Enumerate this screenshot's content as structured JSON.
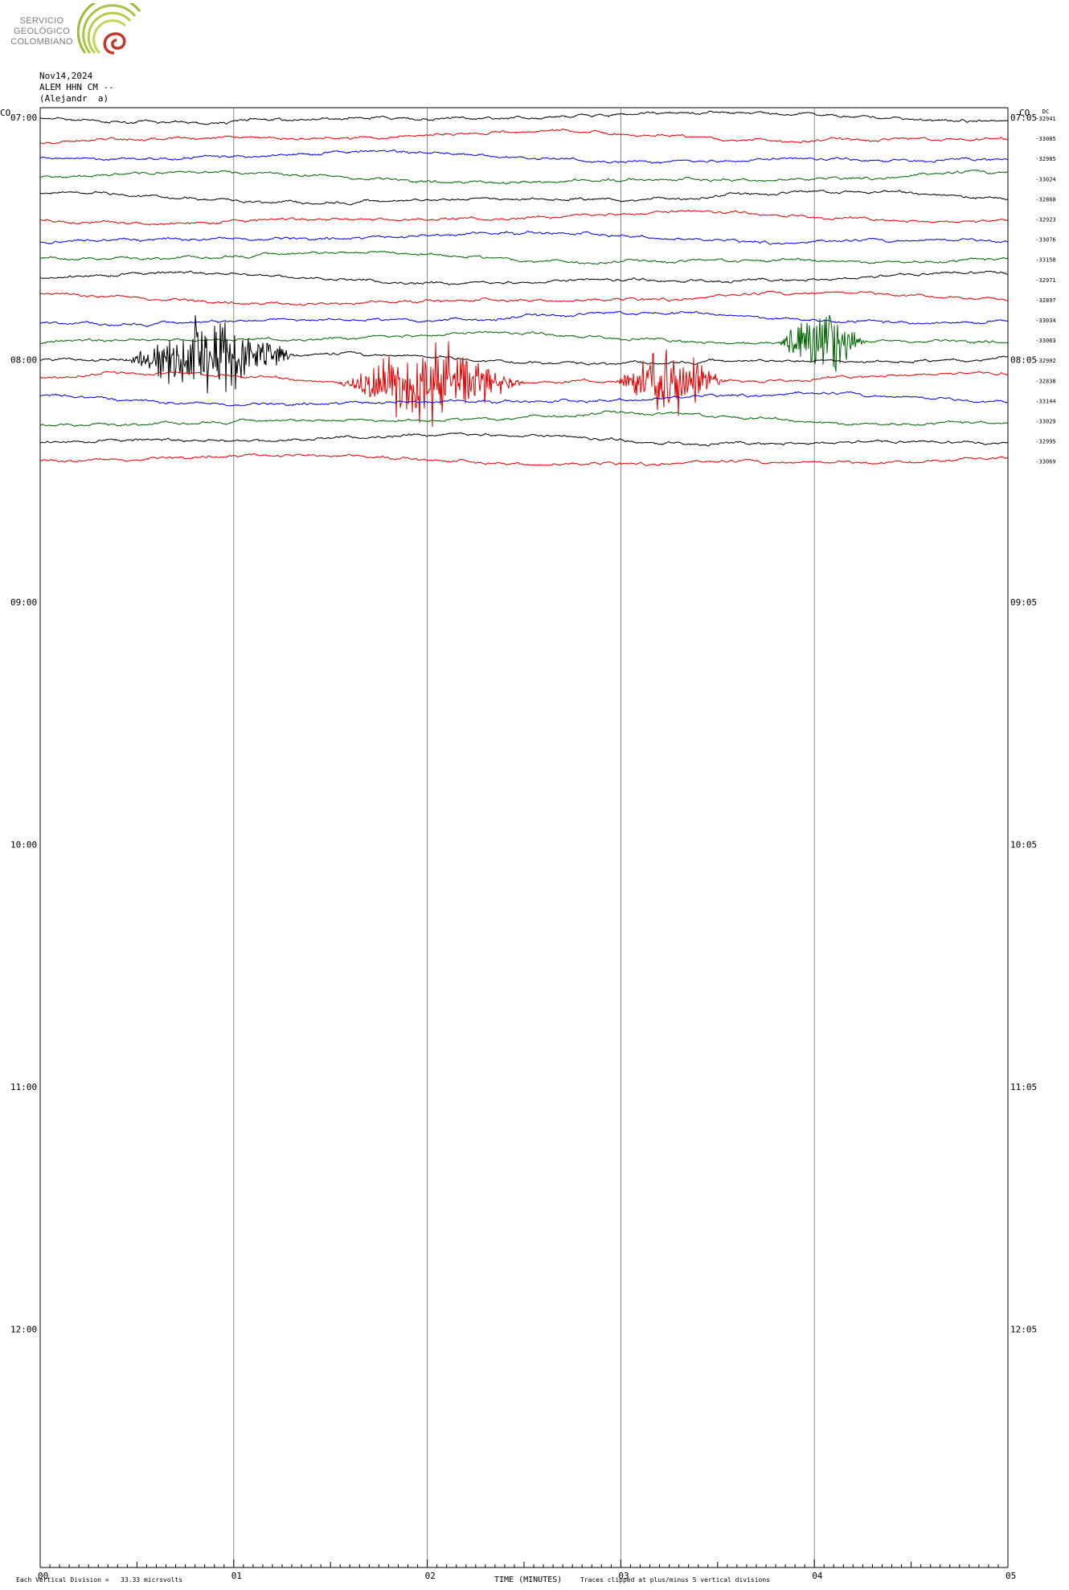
{
  "logo": {
    "line1": "SERVICIO",
    "line2": "GEOLÓGICO",
    "line3": "COLOMBIANO"
  },
  "header": {
    "date": "Nov14,2024",
    "station": "ALEM HHN CM --",
    "location": "(Alejandr  a)"
  },
  "chart_data": {
    "type": "line",
    "title": "",
    "xlabel": "TIME (MINUTES)",
    "ylabel": "",
    "x_range": [
      0,
      5
    ],
    "x_ticks": [
      "00",
      "01",
      "02",
      "03",
      "04",
      "05"
    ],
    "left_tz": "CO",
    "right_tz": "CO",
    "dc_label": "DC",
    "left_hour_labels": [
      "07:00",
      "08:00",
      "09:00",
      "10:00",
      "11:00",
      "12:00"
    ],
    "right_hour_labels": [
      "07:05",
      "08:05",
      "09:05",
      "10:05",
      "11:05",
      "12:05"
    ],
    "trace_colors": [
      "#000000",
      "#e00000",
      "#0000e0",
      "#006400"
    ],
    "trace_dc_values": [
      "-32941",
      "-33085",
      "-32985",
      "-33024",
      "-32868",
      "-32923",
      "-33076",
      "-33158",
      "-32971",
      "-32897",
      "-33034",
      "-33063",
      "-32902",
      "-32838",
      "-33144",
      "-33029",
      "-32995",
      "-33069"
    ],
    "events": [
      {
        "trace": 12,
        "start_min": 0.4,
        "end_min": 1.5
      },
      {
        "trace": 13,
        "start_min": 1.5,
        "end_min": 2.7
      },
      {
        "trace": 13,
        "start_min": 2.95,
        "end_min": 3.65
      },
      {
        "trace": 11,
        "start_min": 3.8,
        "end_min": 4.35
      }
    ],
    "footer_left": "Each Vertical Division =   33.33 micrsvolts",
    "footer_right": "Traces clipped at plus/minus 5 vertical divisions"
  }
}
